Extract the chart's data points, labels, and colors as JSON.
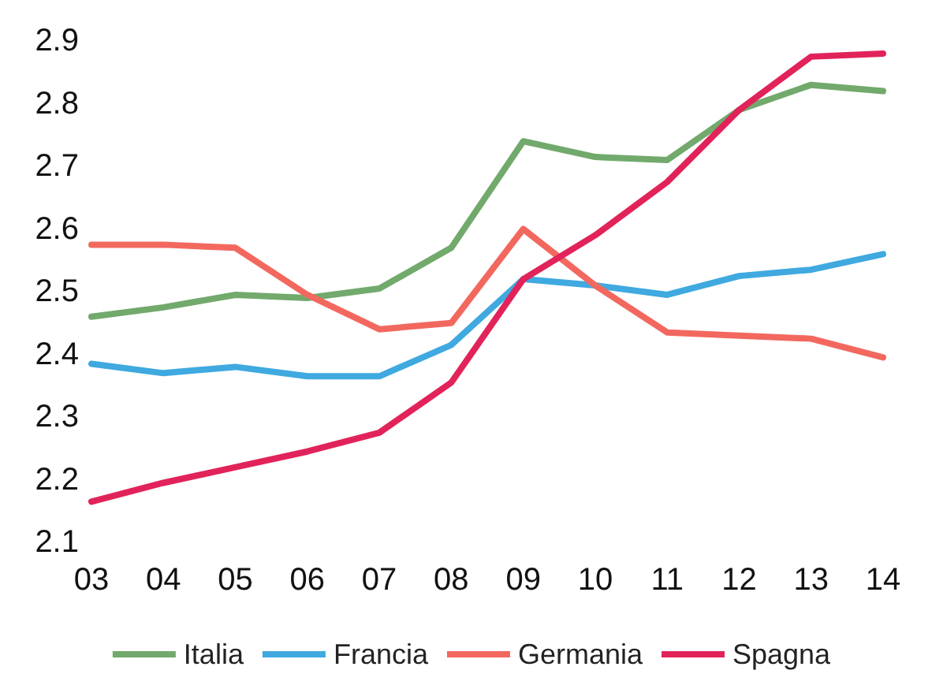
{
  "chart_data": {
    "type": "line",
    "categories": [
      "03",
      "04",
      "05",
      "06",
      "07",
      "08",
      "09",
      "10",
      "11",
      "12",
      "13",
      "14"
    ],
    "series": [
      {
        "name": "Italia",
        "color": "#72a96c",
        "values": [
          2.46,
          2.475,
          2.495,
          2.49,
          2.505,
          2.57,
          2.74,
          2.715,
          2.71,
          2.79,
          2.83,
          2.82
        ]
      },
      {
        "name": "Francia",
        "color": "#3fa9e0",
        "values": [
          2.385,
          2.37,
          2.38,
          2.365,
          2.365,
          2.415,
          2.52,
          2.51,
          2.495,
          2.525,
          2.535,
          2.56
        ]
      },
      {
        "name": "Germania",
        "color": "#f2685f",
        "values": [
          2.575,
          2.575,
          2.57,
          2.495,
          2.44,
          2.45,
          2.6,
          2.51,
          2.435,
          2.43,
          2.425,
          2.395
        ]
      },
      {
        "name": "Spagna",
        "color": "#e2235a",
        "values": [
          2.165,
          2.195,
          2.22,
          2.245,
          2.275,
          2.355,
          2.52,
          2.59,
          2.675,
          2.79,
          2.875,
          2.88
        ]
      }
    ],
    "ylim": [
      2.1,
      2.9
    ],
    "yticks": [
      2.1,
      2.2,
      2.3,
      2.4,
      2.5,
      2.6,
      2.7,
      2.8,
      2.9
    ],
    "grid": false,
    "legend": "bottom",
    "marker": "none",
    "line_style": "solid"
  }
}
